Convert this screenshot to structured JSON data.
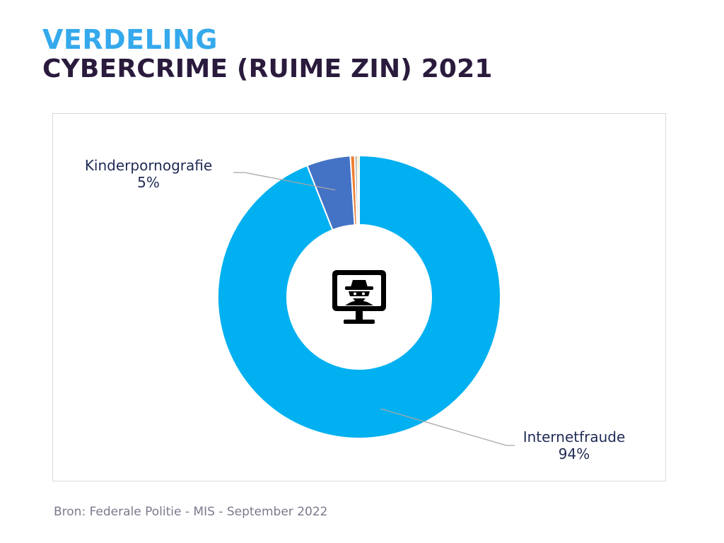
{
  "title": {
    "line1": "VERDELING",
    "line2": "CYBERCRIME (RUIME ZIN) 2021"
  },
  "source": "Bron: Federale Politie - MIS - September 2022",
  "center_icon": "hacker-monitor-icon",
  "chart_data": {
    "type": "pie",
    "subtype": "donut",
    "slices": [
      {
        "name": "Internetfraude",
        "value": 94,
        "value_label": "94%",
        "color": "#00b0f0"
      },
      {
        "name": "Kinderpornografie",
        "value": 5,
        "value_label": "5%",
        "color": "#4472c4"
      },
      {
        "name": "",
        "value": 0.5,
        "color": "#ed7d31"
      },
      {
        "name": "",
        "value": 0.3,
        "color": "#a5a5a5"
      },
      {
        "name": "",
        "value": 0.2,
        "color": "#ffc000"
      }
    ],
    "legend": "none"
  }
}
